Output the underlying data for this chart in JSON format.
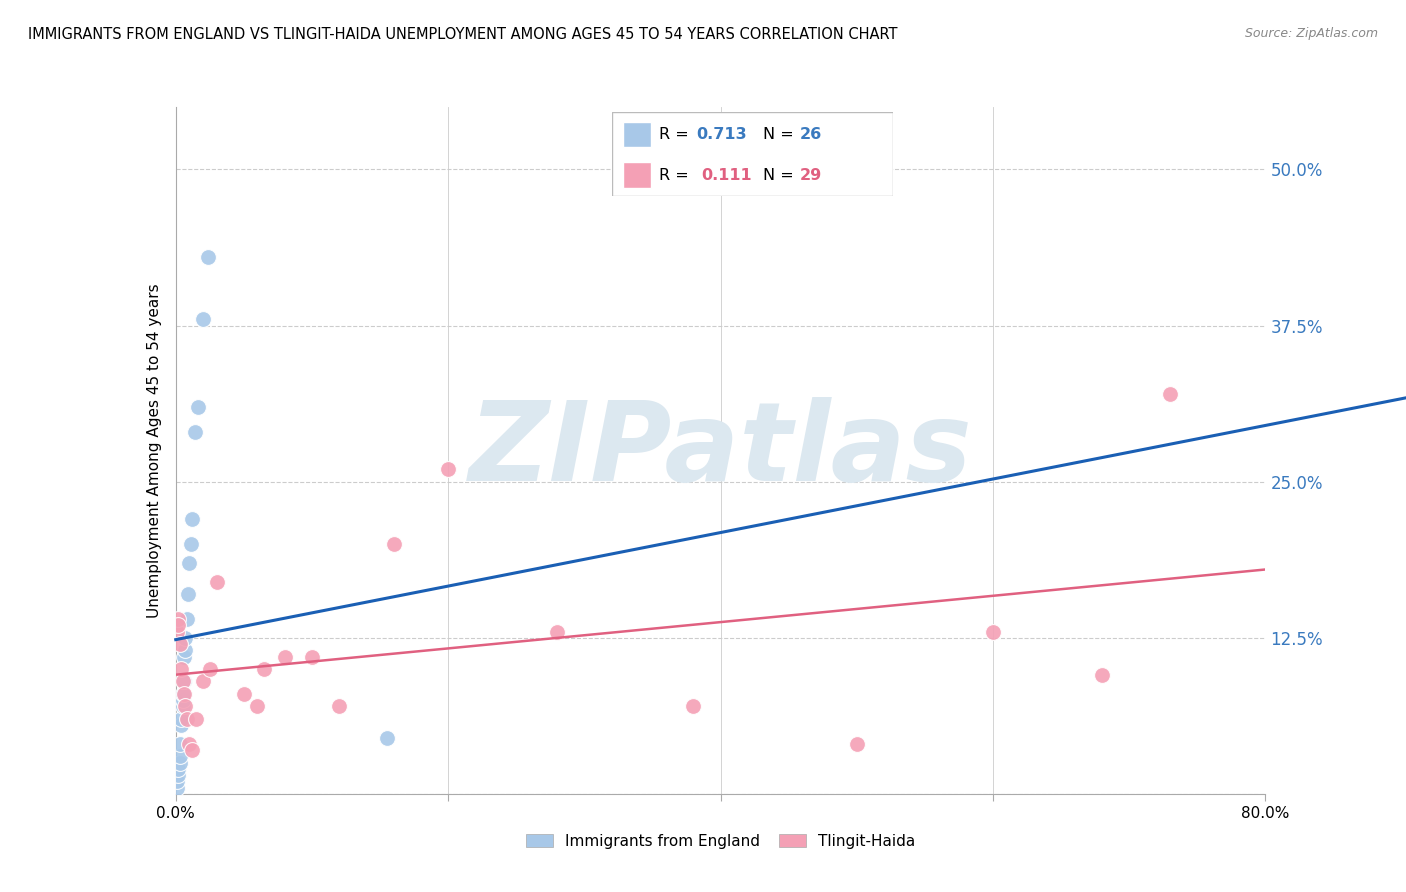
{
  "title": "IMMIGRANTS FROM ENGLAND VS TLINGIT-HAIDA UNEMPLOYMENT AMONG AGES 45 TO 54 YEARS CORRELATION CHART",
  "source": "Source: ZipAtlas.com",
  "ylabel": "Unemployment Among Ages 45 to 54 years",
  "xlim": [
    0,
    0.8
  ],
  "ylim": [
    0,
    0.55
  ],
  "xticks": [
    0.0,
    0.2,
    0.4,
    0.6,
    0.8
  ],
  "yticks": [
    0.0,
    0.125,
    0.25,
    0.375,
    0.5
  ],
  "ytick_labels": [
    "",
    "12.5%",
    "25.0%",
    "37.5%",
    "50.0%"
  ],
  "xtick_labels_ends": [
    "0.0%",
    "80.0%"
  ],
  "blue_label": "Immigrants from England",
  "pink_label": "Tlingit-Haida",
  "blue_R": "0.713",
  "blue_N": "26",
  "pink_R": "0.111",
  "pink_N": "29",
  "blue_color": "#a8c8e8",
  "pink_color": "#f4a0b5",
  "blue_line_color": "#1a5fb4",
  "pink_line_color": "#e06080",
  "watermark": "ZIPatlas",
  "watermark_color": "#dce8f0",
  "blue_scatter_x": [
    0.001,
    0.001,
    0.002,
    0.002,
    0.003,
    0.003,
    0.003,
    0.004,
    0.004,
    0.005,
    0.005,
    0.005,
    0.006,
    0.006,
    0.007,
    0.007,
    0.008,
    0.009,
    0.01,
    0.011,
    0.012,
    0.014,
    0.016,
    0.02,
    0.024,
    0.155
  ],
  "blue_scatter_y": [
    0.005,
    0.01,
    0.015,
    0.02,
    0.025,
    0.03,
    0.04,
    0.055,
    0.06,
    0.07,
    0.075,
    0.08,
    0.09,
    0.11,
    0.115,
    0.125,
    0.14,
    0.16,
    0.185,
    0.2,
    0.22,
    0.29,
    0.31,
    0.38,
    0.43,
    0.045
  ],
  "pink_scatter_x": [
    0.001,
    0.002,
    0.002,
    0.003,
    0.004,
    0.005,
    0.006,
    0.007,
    0.008,
    0.01,
    0.012,
    0.015,
    0.02,
    0.025,
    0.03,
    0.05,
    0.06,
    0.065,
    0.08,
    0.1,
    0.12,
    0.16,
    0.2,
    0.28,
    0.38,
    0.5,
    0.6,
    0.68,
    0.73
  ],
  "pink_scatter_y": [
    0.13,
    0.14,
    0.135,
    0.12,
    0.1,
    0.09,
    0.08,
    0.07,
    0.06,
    0.04,
    0.035,
    0.06,
    0.09,
    0.1,
    0.17,
    0.08,
    0.07,
    0.1,
    0.11,
    0.11,
    0.07,
    0.2,
    0.26,
    0.13,
    0.07,
    0.04,
    0.13,
    0.095,
    0.32
  ],
  "blue_line_x0": 0.0,
  "blue_line_x1": 0.025,
  "pink_line_x0": 0.0,
  "pink_line_x1": 0.8,
  "pink_line_y0": 0.115,
  "pink_line_y1": 0.185
}
